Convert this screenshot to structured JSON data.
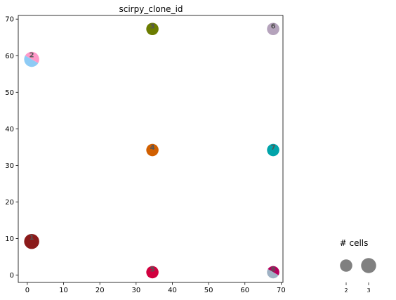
{
  "chart_data": {
    "type": "scatter",
    "title": "scirpy_clone_id",
    "xlabel": "",
    "ylabel": "",
    "xlim": [
      -2.5,
      70.5
    ],
    "ylim": [
      -2,
      71
    ],
    "xticks": [
      0,
      10,
      20,
      30,
      40,
      50,
      60,
      70
    ],
    "yticks": [
      0,
      10,
      20,
      30,
      40,
      50,
      60,
      70
    ],
    "grid": false,
    "nodes": [
      {
        "label": "1",
        "x": 1.2,
        "y": 9.2,
        "cells": 3,
        "colors": [
          "#8b1a1a",
          "#8b1a1a"
        ]
      },
      {
        "label": "2",
        "x": 1.2,
        "y": 59.0,
        "cells": 3,
        "colors": [
          "#ff99c8",
          "#8ecbf5"
        ]
      },
      {
        "label": "3",
        "x": 34.5,
        "y": 67.3,
        "cells": 2,
        "colors": [
          "#6b7c00",
          "#6b7c00"
        ]
      },
      {
        "label": "4",
        "x": 34.5,
        "y": 34.2,
        "cells": 2,
        "colors": [
          "#d15f00",
          "#d15f00"
        ]
      },
      {
        "label": "5",
        "x": 34.5,
        "y": 0.8,
        "cells": 2,
        "colors": [
          "#d1003f",
          "#d1003f"
        ]
      },
      {
        "label": "6",
        "x": 67.8,
        "y": 67.3,
        "cells": 2,
        "colors": [
          "#b5a3bc",
          "#b5a3bc"
        ]
      },
      {
        "label": "7",
        "x": 67.8,
        "y": 34.2,
        "cells": 2,
        "colors": [
          "#00a4aa",
          "#00a4aa"
        ]
      },
      {
        "label": "8",
        "x": 67.8,
        "y": 0.8,
        "cells": 2,
        "colors": [
          "#b5005e",
          "#9fb2c4"
        ]
      }
    ],
    "size_legend": {
      "title": "# cells",
      "entries": [
        {
          "label": "2",
          "cells": 2
        },
        {
          "label": "3",
          "cells": 3
        }
      ],
      "color": "#808080",
      "position": "bottom-right"
    }
  }
}
